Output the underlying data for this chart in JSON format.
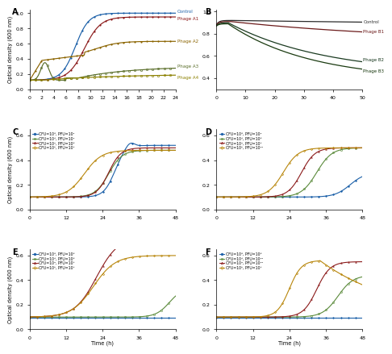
{
  "panel_A": {
    "title": "A",
    "ylabel": "Optical density (600 nm)",
    "xlim": [
      0,
      24
    ],
    "ylim": [
      0,
      1.05
    ],
    "xticks": [
      0,
      2,
      4,
      6,
      8,
      10,
      12,
      14,
      16,
      18,
      20,
      22,
      24
    ],
    "yticks": [
      0,
      0.2,
      0.4,
      0.6,
      0.8,
      1.0
    ],
    "labels": [
      "Control",
      "Phage A1",
      "Phage A2",
      "Phage A3",
      "Phage A4"
    ],
    "colors": [
      "#1a5fa8",
      "#8b1a1a",
      "#8b6400",
      "#5a6e2a",
      "#8b8000"
    ]
  },
  "panel_B": {
    "title": "B",
    "xlim": [
      0,
      50
    ],
    "ylim": [
      0.3,
      1.05
    ],
    "xticks": [
      0,
      10,
      20,
      30,
      40,
      50
    ],
    "yticks": [
      0.4,
      0.6,
      0.8,
      1.0
    ],
    "labels": [
      "Control",
      "Phage B1",
      "Phage B2",
      "Phage B3"
    ],
    "colors": [
      "#2c2c2c",
      "#6b1a1a",
      "#1a3a20",
      "#1a3a10"
    ]
  },
  "panel_C": {
    "title": "C",
    "legend": [
      "CFU=10⁶, PFU=10²",
      "CFU=10⁵, PFU=10⁴",
      "CFU=10⁴, PFU=10⁶",
      "CFU=10³, PFU=10⁸"
    ]
  },
  "panel_D": {
    "title": "D",
    "legend": [
      "CFU=10⁶, PFU=10⁴",
      "CFU=10⁵, PFU=10⁶",
      "CFU=10⁴, PFU=10⁸",
      "CFU=10³, PFU=10¹⁰"
    ]
  },
  "panel_E": {
    "title": "E",
    "legend": [
      "CFU=10⁶, PFU=10⁶",
      "CFU=10⁵, PFU=10⁶",
      "CFU=10⁴, PFU=10⁸",
      "CFU=10³, PFU=10⁸"
    ]
  },
  "panel_F": {
    "title": "F",
    "legend": [
      "CFU=10⁶, PFU=10⁶",
      "CFU=10⁵, PFU=10¹⁰",
      "CFU=10⁴, PFU=10¹⁰",
      "CFU=10³, PFU=10⁸"
    ]
  },
  "cdef_ylim": [
    0.0,
    0.65
  ],
  "cdef_yticks": [
    0.0,
    0.2,
    0.4,
    0.6
  ],
  "cdef_xticks": [
    0,
    12,
    24,
    36,
    48
  ],
  "cdef_xlabel": "Time (h)",
  "cdef_ylabel": "Optical density (600 nm)",
  "series_colors": [
    "#1a5fa8",
    "#5a8a3a",
    "#8b1a1a",
    "#b8860b"
  ],
  "fig_bg": "#ffffff"
}
